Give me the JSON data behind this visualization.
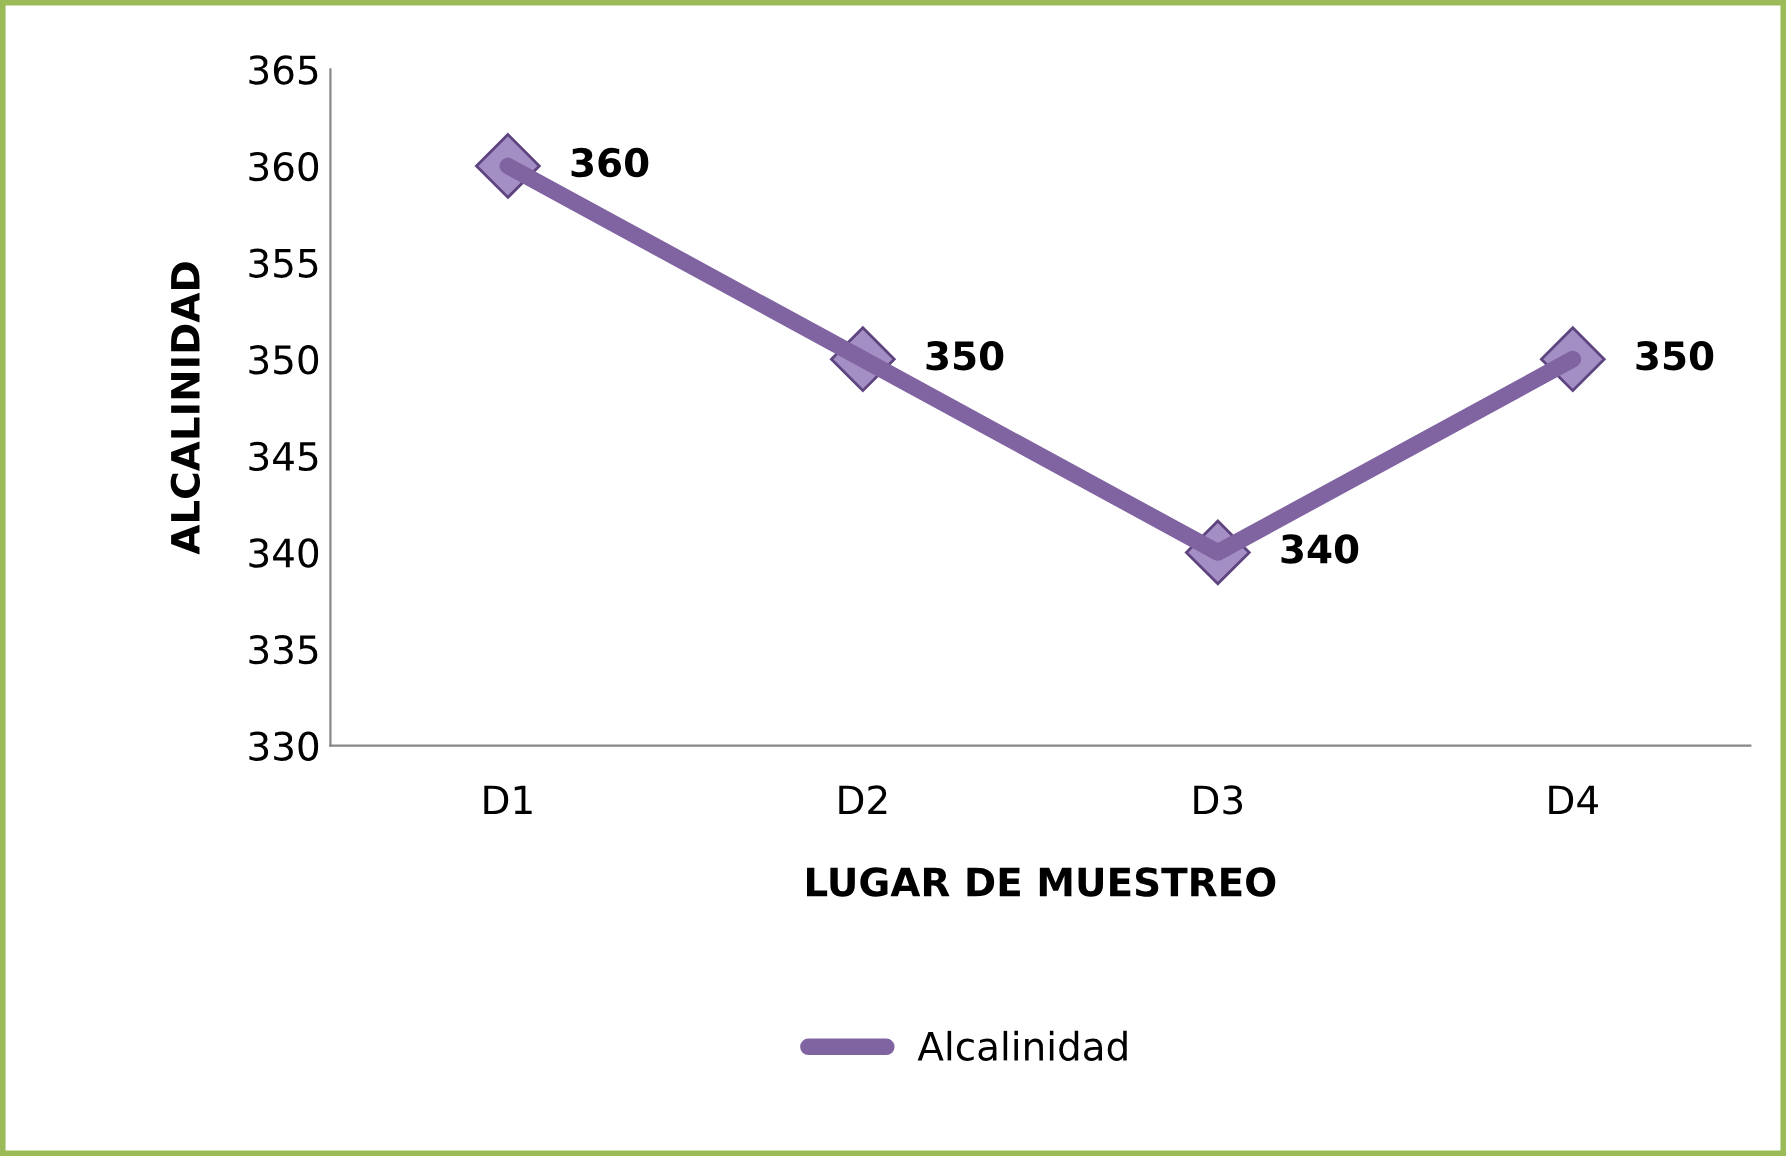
{
  "chart_data": {
    "type": "line",
    "xlabel": "LUGAR DE MUESTREO",
    "ylabel": "ALCALINIDAD",
    "categories": [
      "D1",
      "D2",
      "D3",
      "D4"
    ],
    "series": [
      {
        "name": "Alcalinidad",
        "color": "#8064a2",
        "values": [
          360,
          350,
          340,
          350
        ]
      }
    ],
    "ylim": [
      330,
      365
    ],
    "yticks": [
      330,
      335,
      340,
      345,
      350,
      355,
      360,
      365
    ],
    "data_labels": true,
    "marker": "diamond",
    "legend": "bottom",
    "grid": false
  }
}
